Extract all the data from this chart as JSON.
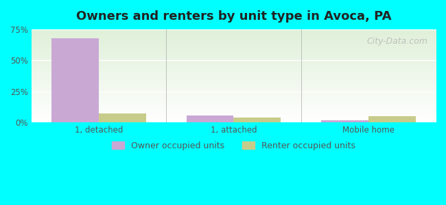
{
  "title": "Owners and renters by unit type in Avoca, PA",
  "categories": [
    "1, detached",
    "1, attached",
    "Mobile home"
  ],
  "owner_values": [
    68.0,
    5.5,
    2.0
  ],
  "renter_values": [
    7.5,
    4.0,
    5.0
  ],
  "owner_color": "#c9a8d4",
  "renter_color": "#c8cc8a",
  "ylim": [
    0,
    75
  ],
  "yticks": [
    0,
    25,
    50,
    75
  ],
  "ytick_labels": [
    "0%",
    "25%",
    "50%",
    "75%"
  ],
  "bar_width": 0.35,
  "background_top": "#dff0d8",
  "background_bottom": "#ffffff",
  "outer_bg": "#00ffff",
  "legend_owner": "Owner occupied units",
  "legend_renter": "Renter occupied units",
  "watermark": "City-Data.com"
}
